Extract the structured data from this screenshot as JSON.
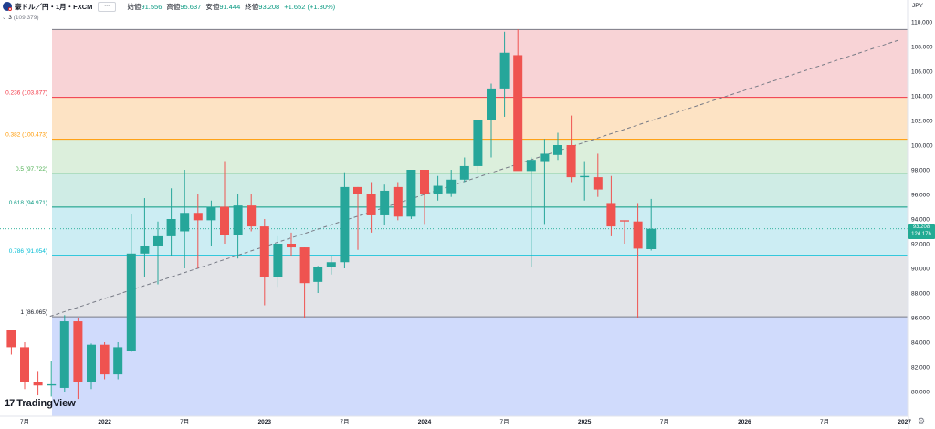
{
  "header": {
    "symbol": "豪ドル／円・1月・FXCM",
    "button_label": "---",
    "open_label": "始値",
    "open": "91.556",
    "high_label": "高値",
    "high": "95.637",
    "low_label": "安値",
    "low": "91.444",
    "close_label": "終値",
    "close": "93.208",
    "change": "+1.652 (+1.80%)"
  },
  "indicator": {
    "count": "3",
    "level_text": "(109.379)"
  },
  "currency": "JPY",
  "price_tag": {
    "price": "93.208",
    "countdown": "12d 17h"
  },
  "logo_text": "TradingView",
  "colors": {
    "up": "#26a69a",
    "down": "#ef5350",
    "accent": "#22ab94"
  },
  "chart_data": {
    "type": "candlestick",
    "y_axis": {
      "range": [
        78.5,
        110.3
      ],
      "ticks": [
        "80.000",
        "82.000",
        "84.000",
        "86.000",
        "88.000",
        "90.000",
        "92.000",
        "94.000",
        "96.000",
        "98.000",
        "100.000",
        "102.000",
        "104.000",
        "106.000",
        "108.000",
        "110.000"
      ]
    },
    "x_axis": {
      "labels": [
        {
          "label": "7月",
          "month": 0
        },
        {
          "label": "2022",
          "month": 6
        },
        {
          "label": "7月",
          "month": 12
        },
        {
          "label": "2023",
          "month": 18
        },
        {
          "label": "7月",
          "month": 24
        },
        {
          "label": "2024",
          "month": 30
        },
        {
          "label": "7月",
          "month": 36
        },
        {
          "label": "2025",
          "month": 42
        },
        {
          "label": "7月",
          "month": 48
        },
        {
          "label": "2026",
          "month": 54
        },
        {
          "label": "7月",
          "month": 60
        },
        {
          "label": "2027",
          "month": 66
        }
      ]
    },
    "fibonacci": [
      {
        "label": "0 (109.379)",
        "ratio": "0",
        "price": 109.379,
        "line": "#787b86"
      },
      {
        "label": "0.236 (103.877)",
        "ratio": "0.236",
        "price": 103.877,
        "line": "#f23645"
      },
      {
        "label": "0.382 (100.473)",
        "ratio": "0.382",
        "price": 100.473,
        "line": "#ff9800"
      },
      {
        "label": "0.5 (97.722)",
        "ratio": "0.5",
        "price": 97.722,
        "line": "#4caf50"
      },
      {
        "label": "0.618 (94.971)",
        "ratio": "0.618",
        "price": 94.971,
        "line": "#089981"
      },
      {
        "label": "0.786 (91.054)",
        "ratio": "0.786",
        "price": 91.054,
        "line": "#00bcd4"
      },
      {
        "label": "1 (86.065)",
        "ratio": "1",
        "price": 86.065,
        "line": "#787b86"
      }
    ],
    "fib_fills": [
      "#f8d3d6",
      "#fde3c4",
      "#dcefdc",
      "#cfece5",
      "#ccedf3",
      "#e3e4e8",
      "#d0dbfc"
    ],
    "trendline": {
      "from": {
        "month": 1.9,
        "price": 86.1
      },
      "to": {
        "month": 65.5,
        "price": 108.5
      },
      "style": "dashed",
      "color": "#787b86"
    },
    "current_price_line": 93.208,
    "candles": [
      {
        "m": -1,
        "o": 85.0,
        "h": 85.0,
        "l": 83.0,
        "c": 83.6
      },
      {
        "m": 0,
        "o": 83.6,
        "h": 84.0,
        "l": 80.2,
        "c": 80.8
      },
      {
        "m": 1,
        "o": 80.8,
        "h": 81.6,
        "l": 79.7,
        "c": 80.5
      },
      {
        "m": 2,
        "o": 80.5,
        "h": 82.5,
        "l": 79.6,
        "c": 80.6
      },
      {
        "m": 3,
        "o": 80.3,
        "h": 86.2,
        "l": 80.0,
        "c": 85.7
      },
      {
        "m": 4,
        "o": 85.7,
        "h": 86.0,
        "l": 79.4,
        "c": 80.8
      },
      {
        "m": 5,
        "o": 80.8,
        "h": 83.9,
        "l": 80.2,
        "c": 83.8
      },
      {
        "m": 6,
        "o": 83.8,
        "h": 84.0,
        "l": 81.0,
        "c": 81.4
      },
      {
        "m": 7,
        "o": 81.4,
        "h": 84.0,
        "l": 81.0,
        "c": 83.6
      },
      {
        "m": 8,
        "o": 83.3,
        "h": 94.4,
        "l": 83.2,
        "c": 91.2
      },
      {
        "m": 9,
        "o": 91.2,
        "h": 95.7,
        "l": 89.3,
        "c": 91.8
      },
      {
        "m": 10,
        "o": 91.8,
        "h": 93.8,
        "l": 88.7,
        "c": 92.6
      },
      {
        "m": 11,
        "o": 92.6,
        "h": 96.5,
        "l": 91.0,
        "c": 94.0
      },
      {
        "m": 12,
        "o": 93.0,
        "h": 98.0,
        "l": 90.0,
        "c": 94.5
      },
      {
        "m": 13,
        "o": 94.5,
        "h": 96.0,
        "l": 90.0,
        "c": 93.9
      },
      {
        "m": 14,
        "o": 93.9,
        "h": 95.5,
        "l": 91.8,
        "c": 95.0
      },
      {
        "m": 15,
        "o": 95.0,
        "h": 98.7,
        "l": 92.0,
        "c": 92.7
      },
      {
        "m": 16,
        "o": 92.7,
        "h": 96.0,
        "l": 90.8,
        "c": 95.1
      },
      {
        "m": 17,
        "o": 95.1,
        "h": 96.0,
        "l": 93.0,
        "c": 93.4
      },
      {
        "m": 18,
        "o": 93.4,
        "h": 94.0,
        "l": 87.0,
        "c": 89.3
      },
      {
        "m": 19,
        "o": 89.3,
        "h": 92.6,
        "l": 88.5,
        "c": 92.0
      },
      {
        "m": 20,
        "o": 92.0,
        "h": 92.9,
        "l": 91.0,
        "c": 91.7
      },
      {
        "m": 21,
        "o": 91.7,
        "h": 91.7,
        "l": 86.0,
        "c": 88.8
      },
      {
        "m": 22,
        "o": 88.9,
        "h": 90.2,
        "l": 88.0,
        "c": 90.1
      },
      {
        "m": 23,
        "o": 90.1,
        "h": 91.0,
        "l": 89.5,
        "c": 90.5
      },
      {
        "m": 24,
        "o": 90.5,
        "h": 97.8,
        "l": 90.0,
        "c": 96.6
      },
      {
        "m": 25,
        "o": 96.6,
        "h": 96.6,
        "l": 91.5,
        "c": 96.0
      },
      {
        "m": 26,
        "o": 96.0,
        "h": 97.0,
        "l": 92.9,
        "c": 94.3
      },
      {
        "m": 27,
        "o": 94.3,
        "h": 96.8,
        "l": 93.5,
        "c": 96.3
      },
      {
        "m": 28,
        "o": 96.6,
        "h": 97.0,
        "l": 93.9,
        "c": 94.2
      },
      {
        "m": 29,
        "o": 94.2,
        "h": 98.0,
        "l": 94.0,
        "c": 98.0
      },
      {
        "m": 30,
        "o": 98.0,
        "h": 98.0,
        "l": 93.6,
        "c": 96.0
      },
      {
        "m": 31,
        "o": 96.0,
        "h": 97.5,
        "l": 95.5,
        "c": 96.7
      },
      {
        "m": 32,
        "o": 96.1,
        "h": 98.0,
        "l": 95.8,
        "c": 97.2
      },
      {
        "m": 33,
        "o": 97.2,
        "h": 99.0,
        "l": 97.0,
        "c": 98.3
      },
      {
        "m": 34,
        "o": 98.3,
        "h": 102.0,
        "l": 97.8,
        "c": 102.0
      },
      {
        "m": 35,
        "o": 102.0,
        "h": 105.0,
        "l": 99.0,
        "c": 104.6
      },
      {
        "m": 36,
        "o": 104.6,
        "h": 109.2,
        "l": 102.3,
        "c": 107.5
      },
      {
        "m": 37,
        "o": 107.3,
        "h": 109.4,
        "l": 98.0,
        "c": 97.9
      },
      {
        "m": 38,
        "o": 97.9,
        "h": 99.0,
        "l": 90.1,
        "c": 98.8
      },
      {
        "m": 39,
        "o": 98.7,
        "h": 100.5,
        "l": 93.6,
        "c": 99.3
      },
      {
        "m": 40,
        "o": 99.2,
        "h": 101.0,
        "l": 98.8,
        "c": 100.0
      },
      {
        "m": 41,
        "o": 100.0,
        "h": 102.4,
        "l": 97.0,
        "c": 97.4
      },
      {
        "m": 42,
        "o": 97.4,
        "h": 98.7,
        "l": 95.5,
        "c": 97.5
      },
      {
        "m": 43,
        "o": 97.4,
        "h": 99.3,
        "l": 95.8,
        "c": 96.4
      },
      {
        "m": 44,
        "o": 95.3,
        "h": 97.5,
        "l": 92.6,
        "c": 93.4
      },
      {
        "m": 45,
        "o": 93.9,
        "h": 93.9,
        "l": 92.0,
        "c": 93.8
      },
      {
        "m": 46,
        "o": 93.8,
        "h": 95.3,
        "l": 86.0,
        "c": 91.6
      },
      {
        "m": 47,
        "o": 91.556,
        "h": 95.637,
        "l": 91.444,
        "c": 93.208
      }
    ]
  }
}
